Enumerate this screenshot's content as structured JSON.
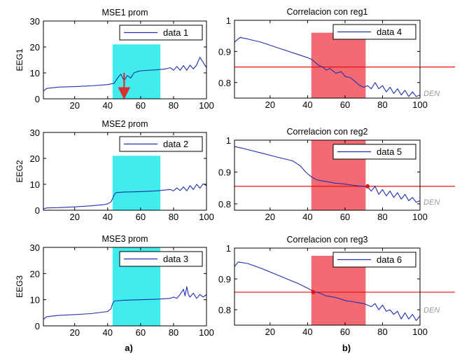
{
  "colors": {
    "series": "#1f2fb0",
    "axes": "#000000",
    "cyan_band": "#00e6e6",
    "red_band": "#f0303c",
    "threshold": "#e81010",
    "arrow": "#d83030",
    "faint_text": "#9a9a9a"
  },
  "captions": {
    "left": "a)",
    "right": "b)"
  },
  "side_text": [
    "DEN",
    "DEN",
    "DEN"
  ],
  "chart_data": [
    {
      "id": "p1",
      "type": "line",
      "title": "MSE1 prom",
      "ylabel": "EEG1",
      "xlabel": "",
      "xlim": [
        1,
        100
      ],
      "ylim": [
        0,
        30
      ],
      "xticks": [
        20,
        40,
        60,
        80,
        100
      ],
      "yticks": [
        0,
        10,
        20,
        30
      ],
      "legend": "data 1",
      "legend_position": "top-right",
      "band": {
        "x": [
          43,
          72
        ],
        "y": [
          0,
          21
        ],
        "color": "cyan"
      },
      "arrow": {
        "x": 50,
        "from": 10,
        "to": 0.5
      },
      "series": [
        {
          "name": "data 1",
          "points": [
            [
              1,
              3
            ],
            [
              3,
              4
            ],
            [
              10,
              4.5
            ],
            [
              20,
              4.7
            ],
            [
              30,
              5
            ],
            [
              40,
              5.5
            ],
            [
              44,
              6
            ],
            [
              46,
              8
            ],
            [
              48,
              9.5
            ],
            [
              50,
              7
            ],
            [
              52,
              9
            ],
            [
              54,
              8
            ],
            [
              56,
              10
            ],
            [
              58,
              10.5
            ],
            [
              60,
              10.8
            ],
            [
              70,
              11.2
            ],
            [
              75,
              11.5
            ],
            [
              78,
              12
            ],
            [
              80,
              11
            ],
            [
              82,
              12.5
            ],
            [
              84,
              11
            ],
            [
              86,
              12.8
            ],
            [
              88,
              11
            ],
            [
              90,
              13
            ],
            [
              92,
              11.5
            ],
            [
              94,
              13
            ],
            [
              96,
              16
            ],
            [
              98,
              14
            ],
            [
              100,
              12
            ]
          ]
        }
      ]
    },
    {
      "id": "p2",
      "type": "line",
      "title": "MSE2 prom",
      "ylabel": "EEG2",
      "xlabel": "",
      "xlim": [
        1,
        100
      ],
      "ylim": [
        0,
        30
      ],
      "xticks": [
        20,
        40,
        60,
        80,
        100
      ],
      "yticks": [
        0,
        10,
        20,
        30
      ],
      "legend": "data 2",
      "legend_position": "top-right",
      "band": {
        "x": [
          43,
          72
        ],
        "y": [
          0,
          21
        ],
        "color": "cyan"
      },
      "series": [
        {
          "name": "data 2",
          "points": [
            [
              1,
              0.5
            ],
            [
              3,
              0.9
            ],
            [
              10,
              1
            ],
            [
              20,
              1.3
            ],
            [
              30,
              1.7
            ],
            [
              38,
              2.2
            ],
            [
              40,
              2.5
            ],
            [
              42,
              3.2
            ],
            [
              43,
              4.5
            ],
            [
              44,
              6
            ],
            [
              45,
              6.8
            ],
            [
              50,
              7
            ],
            [
              60,
              7.2
            ],
            [
              70,
              7.5
            ],
            [
              75,
              7.8
            ],
            [
              78,
              8
            ],
            [
              80,
              7.5
            ],
            [
              82,
              8.6
            ],
            [
              84,
              7.6
            ],
            [
              86,
              9
            ],
            [
              88,
              7.5
            ],
            [
              90,
              9.5
            ],
            [
              92,
              8
            ],
            [
              94,
              10
            ],
            [
              96,
              8.5
            ],
            [
              98,
              10.2
            ],
            [
              100,
              9.5
            ]
          ]
        }
      ]
    },
    {
      "id": "p3",
      "type": "line",
      "title": "MSE3 prom",
      "ylabel": "EEG3",
      "xlabel": "",
      "xlim": [
        1,
        100
      ],
      "ylim": [
        0,
        30
      ],
      "xticks": [
        20,
        40,
        60,
        80,
        100
      ],
      "yticks": [
        0,
        10,
        20,
        30
      ],
      "legend": "data 3",
      "legend_position": "top-right",
      "band": {
        "x": [
          43,
          72
        ],
        "y": [
          0,
          30
        ],
        "color": "cyan"
      },
      "series": [
        {
          "name": "data 3",
          "points": [
            [
              1,
              2.5
            ],
            [
              3,
              3.5
            ],
            [
              10,
              4
            ],
            [
              20,
              4.3
            ],
            [
              30,
              4.7
            ],
            [
              40,
              5.5
            ],
            [
              42,
              6.5
            ],
            [
              43,
              8.5
            ],
            [
              44,
              9.5
            ],
            [
              50,
              9.8
            ],
            [
              60,
              10
            ],
            [
              70,
              10.2
            ],
            [
              78,
              10.5
            ],
            [
              80,
              11
            ],
            [
              82,
              10.5
            ],
            [
              84,
              12
            ],
            [
              86,
              14
            ],
            [
              87,
              11.5
            ],
            [
              88,
              15
            ],
            [
              89,
              12
            ],
            [
              90,
              11
            ],
            [
              92,
              12.5
            ],
            [
              94,
              10.5
            ],
            [
              96,
              12
            ],
            [
              98,
              11
            ],
            [
              100,
              12
            ]
          ]
        }
      ]
    },
    {
      "id": "p4",
      "type": "line",
      "title": "Correlacion con reg1",
      "ylabel": "",
      "xlabel": "",
      "xlim": [
        1,
        100
      ],
      "ylim": [
        0.75,
        1
      ],
      "xticks": [
        20,
        40,
        60,
        80,
        100
      ],
      "yticks": [
        0.8,
        0.9,
        1
      ],
      "legend": "data 4",
      "legend_position": "top-right",
      "band": {
        "x": [
          42,
          71
        ],
        "y": [
          0.75,
          0.96
        ],
        "color": "red"
      },
      "threshold": 0.85,
      "series": [
        {
          "name": "data 4",
          "points": [
            [
              1,
              0.93
            ],
            [
              4,
              0.945
            ],
            [
              8,
              0.94
            ],
            [
              15,
              0.93
            ],
            [
              25,
              0.91
            ],
            [
              35,
              0.89
            ],
            [
              40,
              0.88
            ],
            [
              42,
              0.875
            ],
            [
              44,
              0.865
            ],
            [
              46,
              0.855
            ],
            [
              48,
              0.85
            ],
            [
              50,
              0.84
            ],
            [
              52,
              0.845
            ],
            [
              55,
              0.83
            ],
            [
              58,
              0.835
            ],
            [
              60,
              0.82
            ],
            [
              63,
              0.815
            ],
            [
              66,
              0.8
            ],
            [
              68,
              0.79
            ],
            [
              70,
              0.785
            ],
            [
              72,
              0.79
            ],
            [
              74,
              0.78
            ],
            [
              76,
              0.8
            ],
            [
              78,
              0.78
            ],
            [
              80,
              0.79
            ],
            [
              82,
              0.77
            ],
            [
              84,
              0.785
            ],
            [
              86,
              0.765
            ],
            [
              88,
              0.78
            ],
            [
              90,
              0.76
            ],
            [
              92,
              0.775
            ],
            [
              94,
              0.755
            ],
            [
              96,
              0.77
            ],
            [
              98,
              0.755
            ],
            [
              100,
              0.76
            ]
          ]
        }
      ]
    },
    {
      "id": "p5",
      "type": "line",
      "title": "Correlacion con reg2",
      "ylabel": "",
      "xlabel": "",
      "xlim": [
        1,
        100
      ],
      "ylim": [
        0.78,
        1
      ],
      "xticks": [
        20,
        40,
        60,
        80,
        100
      ],
      "yticks": [
        0.8,
        0.9,
        1
      ],
      "legend": "data 5",
      "legend_position": "top-right",
      "band": {
        "x": [
          42,
          71
        ],
        "y": [
          0.78,
          1
        ],
        "color": "red"
      },
      "threshold": 0.855,
      "marker_x": 72,
      "series": [
        {
          "name": "data 5",
          "points": [
            [
              1,
              0.98
            ],
            [
              5,
              0.975
            ],
            [
              15,
              0.96
            ],
            [
              25,
              0.945
            ],
            [
              32,
              0.935
            ],
            [
              36,
              0.92
            ],
            [
              39,
              0.9
            ],
            [
              42,
              0.885
            ],
            [
              45,
              0.875
            ],
            [
              50,
              0.87
            ],
            [
              55,
              0.865
            ],
            [
              60,
              0.862
            ],
            [
              65,
              0.858
            ],
            [
              70,
              0.855
            ],
            [
              72,
              0.853
            ],
            [
              74,
              0.84
            ],
            [
              76,
              0.855
            ],
            [
              78,
              0.83
            ],
            [
              80,
              0.845
            ],
            [
              82,
              0.825
            ],
            [
              84,
              0.84
            ],
            [
              86,
              0.82
            ],
            [
              88,
              0.835
            ],
            [
              90,
              0.815
            ],
            [
              92,
              0.83
            ],
            [
              94,
              0.81
            ],
            [
              96,
              0.82
            ],
            [
              98,
              0.805
            ],
            [
              100,
              0.81
            ]
          ]
        }
      ]
    },
    {
      "id": "p6",
      "type": "line",
      "title": "Correlacion con reg3",
      "ylabel": "",
      "xlabel": "",
      "xlim": [
        1,
        100
      ],
      "ylim": [
        0.75,
        1
      ],
      "xticks": [
        20,
        40,
        60,
        80,
        100
      ],
      "yticks": [
        0.8,
        0.9,
        1
      ],
      "legend": "data 6",
      "legend_position": "top-right",
      "band": {
        "x": [
          42,
          71
        ],
        "y": [
          0.75,
          0.975
        ],
        "color": "red"
      },
      "threshold": 0.857,
      "marker_x": 43,
      "series": [
        {
          "name": "data 6",
          "points": [
            [
              1,
              0.94
            ],
            [
              3,
              0.955
            ],
            [
              8,
              0.95
            ],
            [
              15,
              0.935
            ],
            [
              25,
              0.91
            ],
            [
              35,
              0.885
            ],
            [
              40,
              0.87
            ],
            [
              43,
              0.86
            ],
            [
              46,
              0.855
            ],
            [
              50,
              0.845
            ],
            [
              55,
              0.84
            ],
            [
              60,
              0.83
            ],
            [
              65,
              0.825
            ],
            [
              70,
              0.82
            ],
            [
              72,
              0.815
            ],
            [
              74,
              0.81
            ],
            [
              76,
              0.82
            ],
            [
              78,
              0.8
            ],
            [
              80,
              0.815
            ],
            [
              82,
              0.795
            ],
            [
              84,
              0.8
            ],
            [
              86,
              0.785
            ],
            [
              88,
              0.795
            ],
            [
              90,
              0.77
            ],
            [
              92,
              0.79
            ],
            [
              94,
              0.77
            ],
            [
              96,
              0.785
            ],
            [
              98,
              0.765
            ],
            [
              100,
              0.78
            ]
          ]
        }
      ]
    }
  ]
}
